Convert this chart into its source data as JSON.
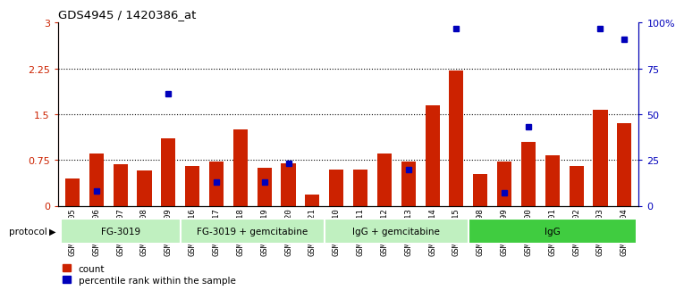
{
  "title": "GDS4945 / 1420386_at",
  "samples": [
    "GSM1126205",
    "GSM1126206",
    "GSM1126207",
    "GSM1126208",
    "GSM1126209",
    "GSM1126216",
    "GSM1126217",
    "GSM1126218",
    "GSM1126219",
    "GSM1126220",
    "GSM1126221",
    "GSM1126210",
    "GSM1126211",
    "GSM1126212",
    "GSM1126213",
    "GSM1126214",
    "GSM1126215",
    "GSM1126198",
    "GSM1126199",
    "GSM1126200",
    "GSM1126201",
    "GSM1126202",
    "GSM1126203",
    "GSM1126204"
  ],
  "count_values": [
    0.45,
    0.85,
    0.68,
    0.58,
    1.1,
    0.65,
    0.72,
    1.25,
    0.62,
    0.7,
    0.18,
    0.6,
    0.6,
    0.85,
    0.72,
    1.65,
    2.22,
    0.52,
    0.72,
    1.05,
    0.82,
    0.65,
    1.57,
    1.35
  ],
  "percentile_values_pct": [
    null,
    8.0,
    null,
    null,
    61.0,
    null,
    13.0,
    null,
    13.0,
    23.0,
    null,
    null,
    null,
    null,
    20.0,
    null,
    97.0,
    null,
    7.0,
    43.0,
    null,
    null,
    97.0,
    91.0
  ],
  "groups": [
    {
      "label": "FG-3019",
      "start": 0,
      "end": 5
    },
    {
      "label": "FG-3019 + gemcitabine",
      "start": 5,
      "end": 11
    },
    {
      "label": "IgG + gemcitabine",
      "start": 11,
      "end": 17
    },
    {
      "label": "IgG",
      "start": 17,
      "end": 24
    }
  ],
  "group_colors": [
    "#c0f0c0",
    "#c0f0c0",
    "#c0f0c0",
    "#40cc40"
  ],
  "bar_color": "#CC2200",
  "dot_color": "#0000BB",
  "ylim_left": [
    0,
    3.0
  ],
  "ylim_right": [
    0,
    100
  ],
  "yticks_left": [
    0,
    0.75,
    1.5,
    2.25,
    3.0
  ],
  "ytick_labels_left": [
    "0",
    "0.75",
    "1.5",
    "2.25",
    "3"
  ],
  "ytick_labels_right": [
    "0",
    "25",
    "50",
    "75",
    "100%"
  ],
  "grid_values": [
    0.75,
    1.5,
    2.25
  ],
  "bar_width": 0.6,
  "dot_size": 0.18,
  "x_label_fontsize": 6.5,
  "background_color": "#ffffff"
}
